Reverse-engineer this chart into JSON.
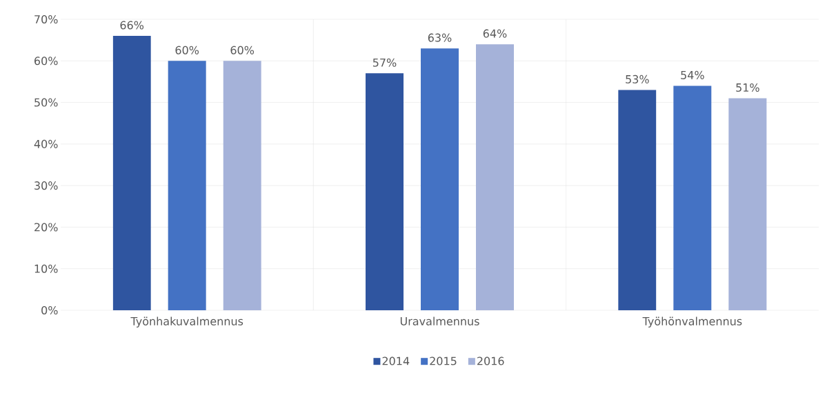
{
  "chart_data": {
    "type": "bar",
    "categories": [
      "Työnhakuvalmennus",
      "Uravalmennus",
      "Työhönvalmennus"
    ],
    "series": [
      {
        "name": "2014",
        "color": "#2f55a0",
        "values": [
          66,
          57,
          53
        ],
        "value_labels": [
          "66%",
          "57%",
          "53%"
        ]
      },
      {
        "name": "2015",
        "color": "#4472c4",
        "values": [
          60,
          63,
          54
        ],
        "value_labels": [
          "60%",
          "63%",
          "54%"
        ]
      },
      {
        "name": "2016",
        "color": "#a5b2d9",
        "values": [
          60,
          64,
          51
        ],
        "value_labels": [
          "60%",
          "64%",
          "51%"
        ]
      }
    ],
    "ylim": [
      0,
      70
    ],
    "yticks": [
      {
        "value": 0,
        "label": "0%"
      },
      {
        "value": 10,
        "label": "10%"
      },
      {
        "value": 20,
        "label": "20%"
      },
      {
        "value": 30,
        "label": "30%"
      },
      {
        "value": 40,
        "label": "40%"
      },
      {
        "value": 50,
        "label": "50%"
      },
      {
        "value": 60,
        "label": "60%"
      },
      {
        "value": 70,
        "label": "70%"
      }
    ],
    "grid": true,
    "legend": "bottom"
  }
}
